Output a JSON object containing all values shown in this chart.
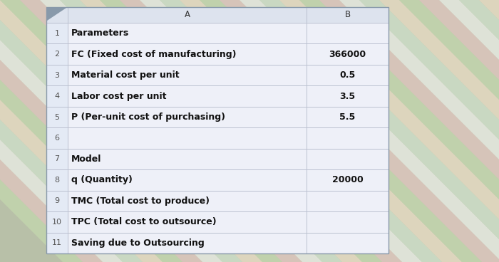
{
  "rows": [
    {
      "num": "1",
      "col_a": "Parameters",
      "col_b": ""
    },
    {
      "num": "2",
      "col_a": "FC (Fixed cost of manufacturing)",
      "col_b": "366000"
    },
    {
      "num": "3",
      "col_a": "Material cost per unit",
      "col_b": "0.5"
    },
    {
      "num": "4",
      "col_a": "Labor cost per unit",
      "col_b": "3.5"
    },
    {
      "num": "5",
      "col_a": "P (Per-unit cost of purchasing)",
      "col_b": "5.5"
    },
    {
      "num": "6",
      "col_a": "",
      "col_b": ""
    },
    {
      "num": "7",
      "col_a": "Model",
      "col_b": ""
    },
    {
      "num": "8",
      "col_a": "q (Quantity)",
      "col_b": "20000"
    },
    {
      "num": "9",
      "col_a": "TMC (Total cost to produce)",
      "col_b": ""
    },
    {
      "num": "10",
      "col_a": "TPC (Total cost to outsource)",
      "col_b": ""
    },
    {
      "num": "11",
      "col_a": "Saving due to Outsourcing",
      "col_b": ""
    }
  ],
  "cell_bg": "#eef0f8",
  "cell_bg_alt": "#e8ecf5",
  "header_bg": "#dde3ee",
  "grid_color": "#b8bece",
  "text_color": "#111111",
  "num_color": "#555555",
  "font_size": 9.0,
  "header_font_size": 8.5,
  "num_font_size": 8.0,
  "stripe_colors": [
    "#c8e0b0",
    "#f0c8c8",
    "#ffffff",
    "#d8ecd8",
    "#fce8d0"
  ],
  "stripe_alpha": 0.55,
  "outer_bg": "#b8c0a8"
}
